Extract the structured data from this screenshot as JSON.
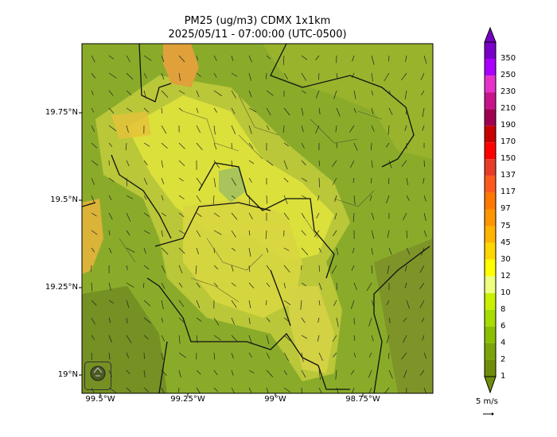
{
  "title_line1": "PM25 (ug/m3) CDMX 1x1km",
  "title_line2": "2025/05/11 - 07:00:00 (UTC-0500)",
  "y_ticks": [
    "19.75°N",
    "19.5°N",
    "19.25°N",
    "19°N"
  ],
  "x_ticks": [
    "99.5°W",
    "99.25°W",
    "99°W",
    "98.75°W"
  ],
  "colorbar": {
    "levels": [
      "1",
      "2",
      "4",
      "6",
      "8",
      "10",
      "12",
      "30",
      "45",
      "75",
      "97",
      "117",
      "137",
      "150",
      "170",
      "190",
      "210",
      "230",
      "250",
      "350"
    ],
    "colors": [
      "#6f8d0a",
      "#7ba30a",
      "#8cbe00",
      "#a6dc00",
      "#c8f000",
      "#eeff80",
      "#ffff00",
      "#ffd700",
      "#ffb400",
      "#ff9600",
      "#ff7800",
      "#ff5a1e",
      "#e63c28",
      "#ff0000",
      "#c80000",
      "#a00050",
      "#c8148c",
      "#e632c8",
      "#aa00ff",
      "#7800c8"
    ]
  },
  "wind_label": "5 m/s",
  "logo": "sedema-logo"
}
